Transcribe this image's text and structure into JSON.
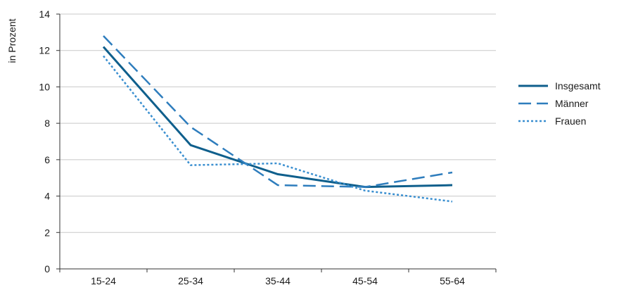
{
  "chart_data": {
    "type": "line",
    "title": "",
    "xlabel": "",
    "ylabel": "in Prozent",
    "categories": [
      "15-24",
      "25-34",
      "35-44",
      "45-54",
      "55-64"
    ],
    "ylim": [
      0,
      14
    ],
    "yticks": [
      0,
      2,
      4,
      6,
      8,
      10,
      12,
      14
    ],
    "grid": true,
    "legend_position": "right",
    "series": [
      {
        "name": "Insgesamt",
        "values": [
          12.2,
          6.8,
          5.2,
          4.5,
          4.6
        ],
        "color": "#0f5f8c",
        "style": "solid"
      },
      {
        "name": "Männer",
        "values": [
          12.8,
          7.8,
          4.6,
          4.5,
          5.3
        ],
        "color": "#2e7dbd",
        "style": "dashed"
      },
      {
        "name": "Frauen",
        "values": [
          11.7,
          5.7,
          5.8,
          4.3,
          3.7
        ],
        "color": "#3a8fd0",
        "style": "dotted"
      }
    ]
  }
}
